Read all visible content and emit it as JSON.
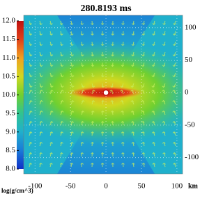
{
  "chart_data": {
    "type": "heatmap",
    "title": "280.8193 ms",
    "xlabel": "km",
    "xlim": [
      -116,
      108
    ],
    "xticks": [
      -100,
      -50,
      0,
      50,
      100
    ],
    "ylim": [
      -125,
      119
    ],
    "yticks": [
      100,
      50,
      0,
      -50,
      -100
    ],
    "grid": true,
    "colorbar": {
      "label": "log(g/cm^3)",
      "lim": [
        8,
        12
      ],
      "ticks": [
        {
          "value": 12,
          "label": "12.0"
        },
        {
          "value": 11.5,
          "label": "11.5"
        },
        {
          "value": 11,
          "label": "11.0"
        },
        {
          "value": 10.5,
          "label": "10.5"
        },
        {
          "value": 10,
          "label": "10.0"
        },
        {
          "value": 9.5,
          "label": "9.5"
        },
        {
          "value": 9,
          "label": "9.0"
        },
        {
          "value": 8.5,
          "label": "8.5"
        },
        {
          "value": 8,
          "label": "8.0"
        }
      ],
      "colors": [
        "#1030c8",
        "#1a7ad8",
        "#20b0cc",
        "#30c490",
        "#70d030",
        "#d0d820",
        "#f0a020",
        "#e04018",
        "#c01010"
      ]
    }
  }
}
